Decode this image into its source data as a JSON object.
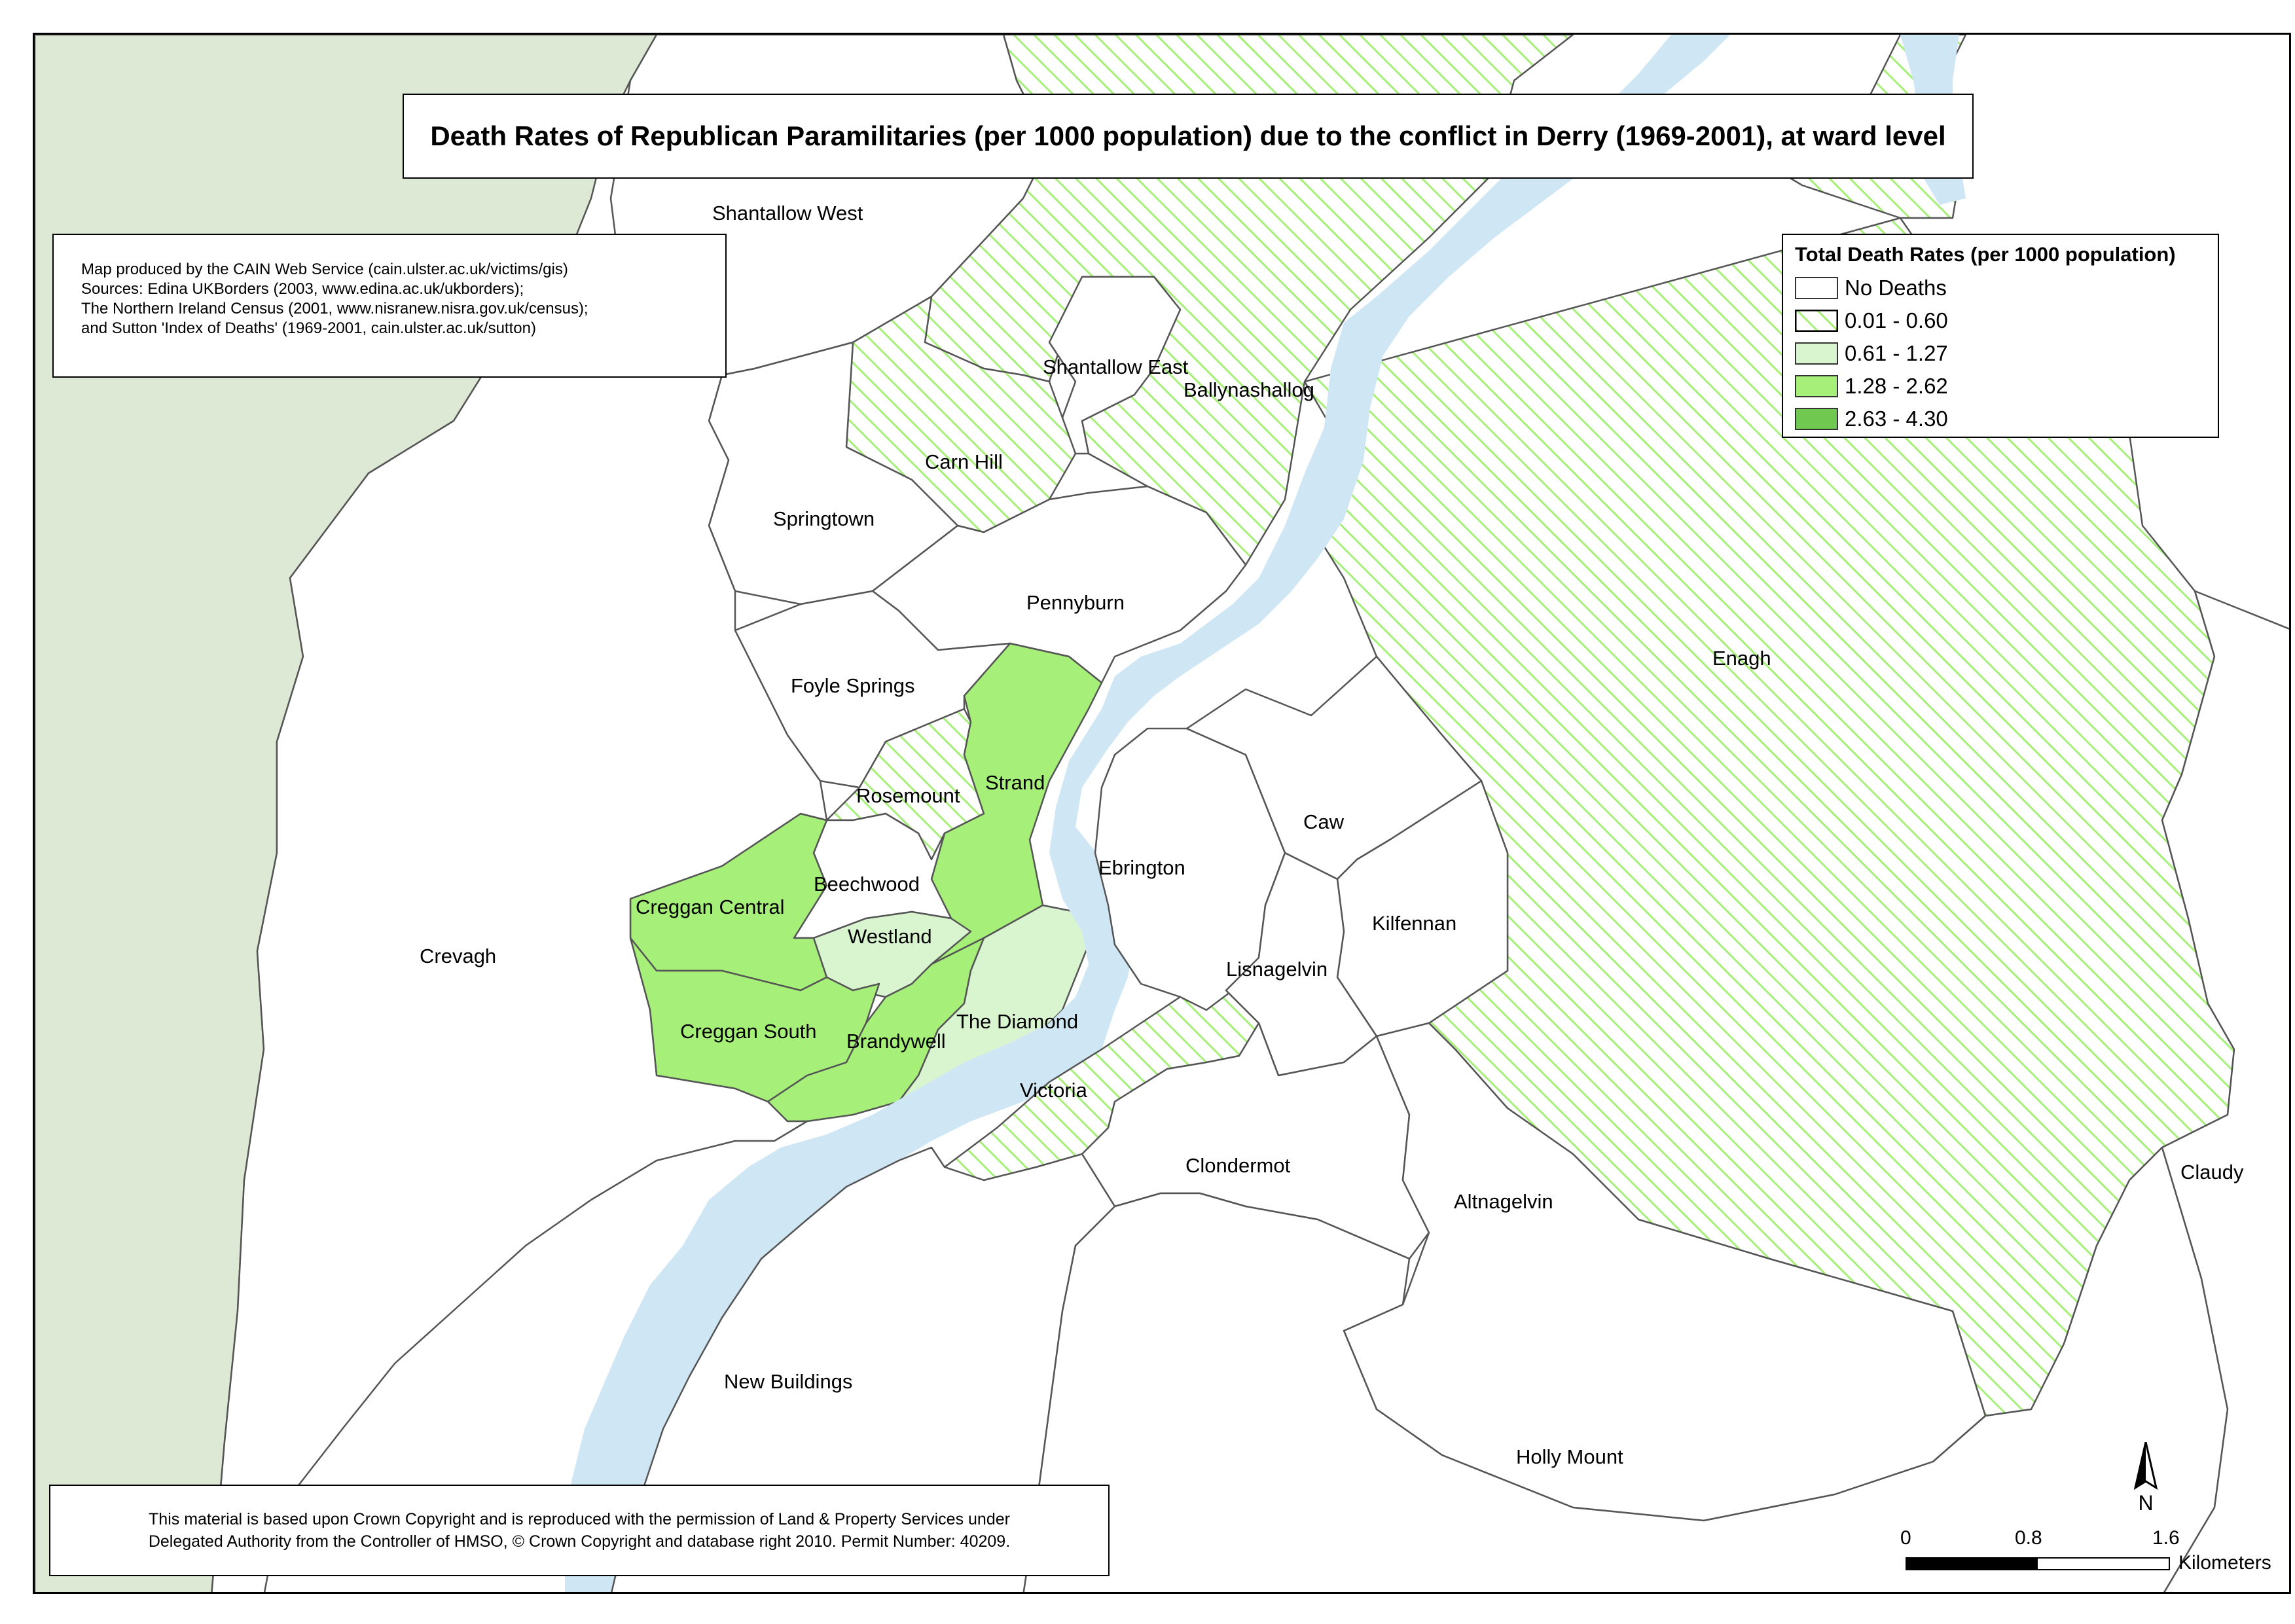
{
  "title": "Death Rates of Republican Paramilitaries (per 1000 population) due to the conflict in Derry (1969-2001), at ward level",
  "credits": [
    "Map produced by the CAIN Web Service (cain.ulster.ac.uk/victims/gis)",
    "Sources: Edina UKBorders (2003, www.edina.ac.uk/ukborders);",
    "The Northern Ireland Census (2001, www.nisranew.nisra.gov.uk/census);",
    "and Sutton 'Index of Deaths' (1969-2001, cain.ulster.ac.uk/sutton)"
  ],
  "legend": {
    "title": "Total Death Rates (per 1000 population)",
    "items": [
      {
        "label": "No Deaths",
        "class": "none",
        "color": "#ffffff"
      },
      {
        "label": "0.01 - 0.60",
        "class": "hatch",
        "color": "#a6f07a"
      },
      {
        "label": "0.61 - 1.27",
        "class": "light",
        "color": "#d9f5cf"
      },
      {
        "label": "1.28 - 2.62",
        "class": "mid",
        "color": "#a6f07a"
      },
      {
        "label": "2.63 - 4.30",
        "class": "dark",
        "color": "#70c850"
      }
    ]
  },
  "colors": {
    "river": "#cfe7f5",
    "land_west": "#dde8d5",
    "hatch_line": "#a6f07a",
    "boundary": "#555555"
  },
  "wards": [
    {
      "name": "Shantallow West",
      "class": "none"
    },
    {
      "name": "Shantallow East",
      "class": "none"
    },
    {
      "name": "Ballynashallog",
      "class": "hatch"
    },
    {
      "name": "Carn Hill",
      "class": "hatch"
    },
    {
      "name": "Springtown",
      "class": "none"
    },
    {
      "name": "Pennyburn",
      "class": "none"
    },
    {
      "name": "Foyle Springs",
      "class": "none"
    },
    {
      "name": "Rosemount",
      "class": "hatch"
    },
    {
      "name": "Strand",
      "class": "mid"
    },
    {
      "name": "Beechwood",
      "class": "none"
    },
    {
      "name": "Creggan Central",
      "class": "mid"
    },
    {
      "name": "Westland",
      "class": "light"
    },
    {
      "name": "Creggan South",
      "class": "mid"
    },
    {
      "name": "Brandywell",
      "class": "mid"
    },
    {
      "name": "The Diamond",
      "class": "light"
    },
    {
      "name": "Victoria",
      "class": "hatch"
    },
    {
      "name": "Crevagh",
      "class": "none"
    },
    {
      "name": "Enagh",
      "class": "hatch"
    },
    {
      "name": "Ebrington",
      "class": "none"
    },
    {
      "name": "Caw",
      "class": "none"
    },
    {
      "name": "Kilfennan",
      "class": "none"
    },
    {
      "name": "Lisnagelvin",
      "class": "none"
    },
    {
      "name": "Clondermot",
      "class": "none"
    },
    {
      "name": "Altnagelvin",
      "class": "none"
    },
    {
      "name": "Claudy",
      "class": "none"
    },
    {
      "name": "New Buildings",
      "class": "none"
    },
    {
      "name": "Holly Mount",
      "class": "none"
    }
  ],
  "copyright": [
    "This material is based upon Crown Copyright and is reproduced with the permission of Land & Property Services under",
    "Delegated Authority from the Controller of HMSO, © Crown Copyright and database right 2010. Permit Number: 40209."
  ],
  "scale": {
    "ticks": [
      "0",
      "0.8",
      "1.6"
    ],
    "unit": "Kilometers"
  },
  "north_label": "N"
}
